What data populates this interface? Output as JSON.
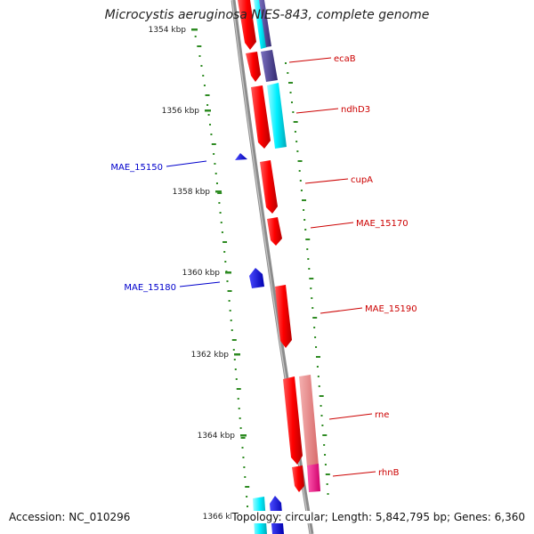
{
  "map": {
    "title": "Microcystis aeruginosa NIES-843, complete genome",
    "accession": "Accession: NC_010296",
    "summary": "Topology: circular; Length: 5,842,795 bp; Genes: 6,360"
  },
  "ticks": [
    {
      "label": "1354 kbp",
      "kbp": 1354
    },
    {
      "label": "1356 kbp",
      "kbp": 1356
    },
    {
      "label": "1358 kbp",
      "kbp": 1358
    },
    {
      "label": "1360 kbp",
      "kbp": 1360
    },
    {
      "label": "1362 kbp",
      "kbp": 1362
    },
    {
      "label": "1364 kbp",
      "kbp": 1364
    },
    {
      "label": "1366 kbp",
      "kbp": 1366
    }
  ],
  "genes": [
    {
      "name": "ecaB",
      "strand": "forward",
      "color": "#cc0000"
    },
    {
      "name": "ndhD3",
      "strand": "forward",
      "color": "#cc0000"
    },
    {
      "name": "cupA",
      "strand": "forward",
      "color": "#cc0000"
    },
    {
      "name": "MAE_15170",
      "strand": "forward",
      "color": "#cc0000"
    },
    {
      "name": "MAE_15190",
      "strand": "forward",
      "color": "#cc0000"
    },
    {
      "name": "rne",
      "strand": "forward",
      "color": "#cc0000"
    },
    {
      "name": "rhnB",
      "strand": "forward",
      "color": "#cc0000"
    },
    {
      "name": "MAE_15150",
      "strand": "reverse",
      "color": "#0000cc"
    },
    {
      "name": "MAE_15180",
      "strand": "reverse",
      "color": "#0000cc"
    }
  ],
  "colors": {
    "forward": "#ff0000",
    "reverse": "#0000ff",
    "dark_feature": "#4a3f8c",
    "cyan_feature": "#00e5ee",
    "pink_feature": "#e88080",
    "magenta_feature": "#ff1493",
    "backbone": "#888888",
    "gc_dots": "#2e8b22"
  }
}
